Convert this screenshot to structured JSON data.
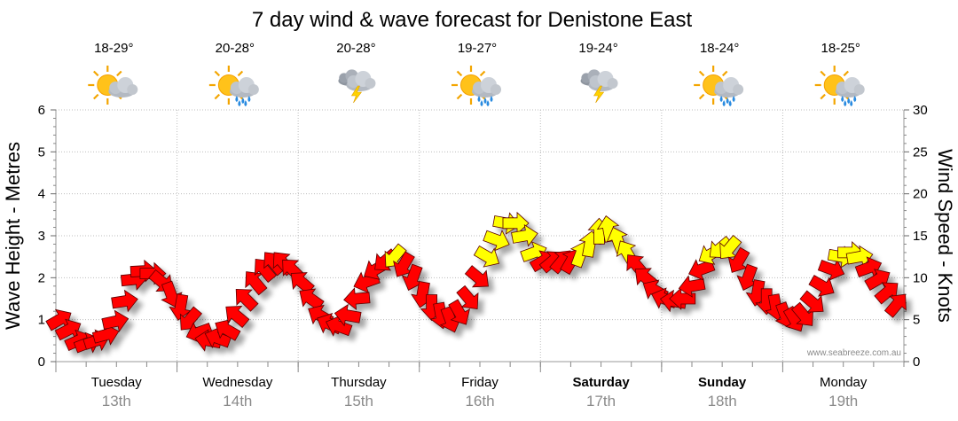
{
  "chart_data": {
    "type": "line",
    "title": "7 day wind & wave forecast for Denistone East",
    "ylabel": "Wave Height - Metres",
    "y2label": "Wind Speed - Knots",
    "ylim": [
      0,
      6
    ],
    "y2lim": [
      0,
      30
    ],
    "y_ticks": [
      "0",
      "1",
      "2",
      "3",
      "4",
      "5",
      "6"
    ],
    "y2_ticks": [
      "0",
      "5",
      "10",
      "15",
      "20",
      "25",
      "30"
    ],
    "watermark": "www.seabreeze.com.au",
    "legend_colors": {
      "light": "#ff0000",
      "strong": "#ffff00"
    },
    "days": [
      {
        "day": "Tuesday",
        "date": "13th",
        "bold": false,
        "temp": "18-29°",
        "icon": "sun-cloud-showers-icon"
      },
      {
        "day": "Wednesday",
        "date": "14th",
        "bold": false,
        "temp": "20-28°",
        "icon": "sun-cloud-rain-icon"
      },
      {
        "day": "Thursday",
        "date": "15th",
        "bold": false,
        "temp": "20-28°",
        "icon": "storm-cloud-icon"
      },
      {
        "day": "Friday",
        "date": "16th",
        "bold": false,
        "temp": "19-27°",
        "icon": "sun-cloud-rain-icon"
      },
      {
        "day": "Saturday",
        "date": "17th",
        "bold": true,
        "temp": "19-24°",
        "icon": "storm-cloud-icon"
      },
      {
        "day": "Sunday",
        "date": "18th",
        "bold": true,
        "temp": "18-24°",
        "icon": "sun-cloud-rain-icon"
      },
      {
        "day": "Monday",
        "date": "19th",
        "bold": false,
        "temp": "18-25°",
        "icon": "sun-cloud-rain-icon"
      }
    ],
    "series": [
      {
        "name": "Wind Speed (knots)",
        "values": [
          5,
          3.8,
          2.5,
          2.2,
          2.5,
          3.2,
          4.8,
          7.2,
          9.8,
          10.8,
          10.5,
          9.5,
          8,
          6.5,
          5,
          3.5,
          2.5,
          2.8,
          3.8,
          5.5,
          7.5,
          9.5,
          11,
          11.8,
          11.8,
          11,
          9.5,
          7.5,
          5.5,
          4.5,
          4.2,
          5.5,
          7.5,
          9.5,
          11,
          12,
          12.5,
          11.5,
          10,
          8,
          6.5,
          5.5,
          5,
          5.8,
          7.5,
          10,
          12.5,
          14.5,
          16.5,
          16.5,
          15,
          13,
          12,
          12,
          12,
          12,
          12.8,
          14,
          15.5,
          15.8,
          14.5,
          13,
          11.5,
          10,
          8.5,
          7.5,
          7.2,
          7.5,
          9,
          11,
          12.8,
          13.5,
          13.5,
          12,
          10,
          8.2,
          7.2,
          6.5,
          5.5,
          5,
          5.5,
          7,
          9,
          11,
          12.5,
          13,
          12.5,
          11.2,
          9.8,
          8.3,
          6.8
        ]
      },
      {
        "name": "Wind Direction (deg toward)",
        "values": [
          330,
          333,
          336,
          339,
          342,
          345,
          348,
          351,
          354,
          357,
          0,
          40,
          70,
          100,
          130,
          160,
          190,
          200,
          210,
          220,
          225,
          230,
          230,
          230,
          230,
          225,
          220,
          215,
          210,
          205,
          200,
          190,
          175,
          160,
          150,
          140,
          130,
          120,
          110,
          100,
          90,
          80,
          70,
          60,
          50,
          40,
          30,
          20,
          10,
          0,
          350,
          340,
          330,
          320,
          310,
          300,
          290,
          280,
          270,
          260,
          250,
          240,
          230,
          220,
          210,
          200,
          190,
          180,
          170,
          160,
          150,
          140,
          130,
          120,
          110,
          100,
          90,
          80,
          70,
          60,
          50,
          40,
          30,
          20,
          10,
          0,
          350,
          340,
          330,
          320,
          310
        ]
      }
    ]
  }
}
